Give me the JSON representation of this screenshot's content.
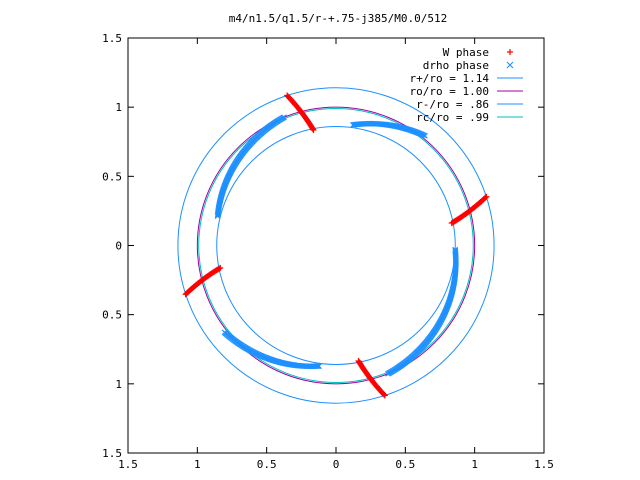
{
  "chart_data": {
    "type": "scatter",
    "title": "m4/n1.5/q1.5/r-+.75-j385/M0.0/512",
    "xlim": [
      -1.5,
      1.5
    ],
    "ylim": [
      -1.5,
      1.5
    ],
    "x_ticks": [
      -1.5,
      -1,
      -0.5,
      0,
      0.5,
      1,
      1.5
    ],
    "y_ticks": [
      1.5,
      1,
      0.5,
      0,
      -0.5,
      -1,
      -1.5
    ],
    "x_tick_labels": [
      "1.5",
      "1",
      "0.5",
      "0",
      "0.5",
      "1",
      "1.5"
    ],
    "y_tick_labels": [
      "1.5",
      "1",
      "0.5",
      "0",
      "0.5",
      "1",
      "1.5"
    ],
    "grid": false,
    "legend_position": "top-right",
    "series": [
      {
        "name": "W phase",
        "kind": "points",
        "marker": "+",
        "color": "#ff0000",
        "segments": [
          {
            "r_inner": 0.85,
            "r_outer": 1.14,
            "angle_inner_deg": 101,
            "angle_outer_deg": 108
          },
          {
            "r_inner": 0.85,
            "r_outer": 1.14,
            "angle_inner_deg": 11,
            "angle_outer_deg": 18
          },
          {
            "r_inner": 0.85,
            "r_outer": 1.14,
            "angle_inner_deg": 191,
            "angle_outer_deg": 198
          },
          {
            "r_inner": 0.85,
            "r_outer": 1.14,
            "angle_inner_deg": 281,
            "angle_outer_deg": 288
          }
        ]
      },
      {
        "name": "drho phase",
        "kind": "points",
        "marker": "x",
        "color": "#1e90ff",
        "arcs": [
          {
            "start_deg": 51,
            "end_deg": 82,
            "r_start": 1.02,
            "r_end": 0.88
          },
          {
            "start_deg": 112,
            "end_deg": 166,
            "r_start": 1.0,
            "r_end": 0.88
          },
          {
            "start_deg": 218,
            "end_deg": 262,
            "r_start": 1.02,
            "r_end": 0.88
          },
          {
            "start_deg": 292,
            "end_deg": 358,
            "r_start": 1.0,
            "r_end": 0.86
          }
        ]
      },
      {
        "name": "r+/ro = 1.14",
        "kind": "circle",
        "r": 1.14,
        "color": "#1e90ff"
      },
      {
        "name": "ro/ro = 1.00",
        "kind": "circle",
        "r": 1.0,
        "color": "#a000a0"
      },
      {
        "name": "r-/ro = .86",
        "kind": "circle",
        "r": 0.86,
        "color": "#1e90ff"
      },
      {
        "name": "rc/ro = .99",
        "kind": "circle",
        "r": 0.99,
        "color": "#00c0c0"
      }
    ]
  }
}
